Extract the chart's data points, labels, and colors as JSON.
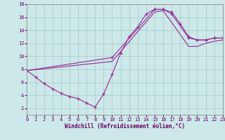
{
  "xlabel": "Windchill (Refroidissement éolien,°C)",
  "background_color": "#cce8e8",
  "grid_color": "#aacece",
  "line_color": "#993399",
  "xlim": [
    0,
    23
  ],
  "ylim": [
    1,
    18
  ],
  "xticks": [
    0,
    1,
    2,
    3,
    4,
    5,
    6,
    7,
    8,
    9,
    10,
    11,
    12,
    13,
    14,
    15,
    16,
    17,
    18,
    19,
    20,
    21,
    22,
    23
  ],
  "yticks": [
    2,
    4,
    6,
    8,
    10,
    12,
    14,
    16,
    18
  ],
  "line1_x": [
    0,
    1,
    2,
    3,
    4,
    5,
    6,
    7,
    8,
    9,
    10,
    11,
    12,
    13,
    14,
    15,
    16,
    17,
    18,
    19,
    20,
    21,
    22,
    23
  ],
  "line1_y": [
    7.8,
    6.8,
    5.8,
    5.0,
    4.3,
    3.8,
    3.5,
    2.8,
    2.2,
    4.2,
    7.2,
    10.5,
    13.0,
    14.5,
    16.5,
    17.2,
    17.2,
    16.8,
    15.0,
    13.0,
    12.5,
    12.5,
    12.8,
    12.8
  ],
  "line2_x": [
    0,
    10,
    15,
    16,
    17,
    19,
    20,
    21,
    22,
    23
  ],
  "line2_y": [
    7.8,
    9.8,
    17.2,
    17.2,
    16.5,
    12.8,
    12.5,
    12.5,
    12.8,
    12.8
  ],
  "line3_x": [
    0,
    10,
    15,
    16,
    17,
    19,
    20,
    21,
    22,
    23
  ],
  "line3_y": [
    7.8,
    9.2,
    16.8,
    17.0,
    15.2,
    11.5,
    11.5,
    12.0,
    12.3,
    12.5
  ]
}
